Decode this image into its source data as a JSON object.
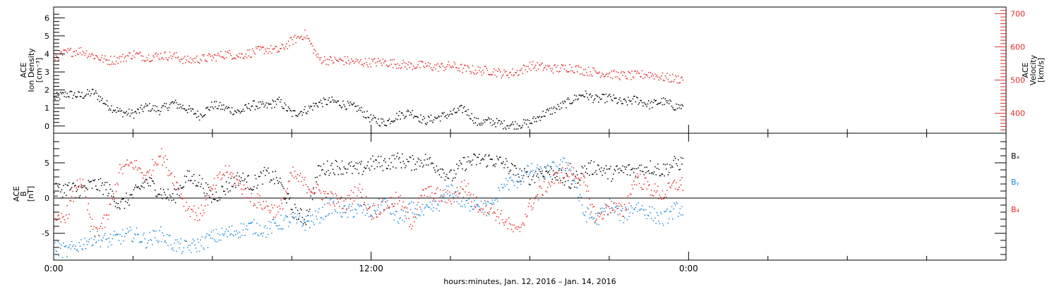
{
  "colors": {
    "axis": "#000000",
    "black": "#000000",
    "red": "#e32b2b",
    "blue": "#1f8ad6"
  },
  "chart_data": [
    {
      "type": "scatter",
      "panel": "top",
      "ylabel_left": [
        "ACE",
        "Ion Density",
        "[cm⁻³]"
      ],
      "ylabel_right": [
        "ACE",
        "Velocity",
        "[km/s]"
      ],
      "left_ylim": [
        -0.4,
        6.6
      ],
      "right_ylim": [
        340,
        720
      ],
      "left_ticks": [
        0,
        1,
        2,
        3,
        4,
        5,
        6
      ],
      "right_ticks": [
        400,
        500,
        600,
        700
      ],
      "series": [
        {
          "axis": "left",
          "color": "black",
          "x": [
            0.0,
            0.5,
            1.0,
            1.5,
            2.0,
            2.5,
            3.0,
            3.5,
            4.0,
            4.5,
            5.0,
            5.5,
            6.0,
            6.5,
            7.0,
            7.5,
            8.0,
            8.5,
            9.0,
            9.5,
            10.0,
            10.5,
            11.0,
            11.5,
            12.0,
            12.5,
            13.0,
            13.5,
            14.0,
            14.5,
            15.0,
            15.5,
            16.0,
            16.5,
            17.0,
            17.5,
            18.0,
            18.5,
            19.0,
            19.5,
            20.0,
            20.5,
            21.0,
            21.5,
            22.0,
            22.5,
            23.0,
            23.5
          ],
          "y": [
            1.6,
            1.8,
            1.7,
            1.9,
            1.2,
            0.8,
            0.7,
            1.1,
            0.9,
            1.3,
            1.0,
            0.6,
            1.2,
            1.0,
            0.8,
            1.2,
            1.1,
            1.4,
            0.7,
            0.9,
            1.3,
            1.4,
            1.2,
            1.0,
            0.4,
            0.2,
            0.6,
            0.8,
            0.3,
            0.5,
            0.7,
            1.0,
            0.2,
            0.3,
            0.1,
            0.1,
            0.2,
            0.7,
            1.0,
            1.4,
            1.8,
            1.5,
            1.6,
            1.3,
            1.5,
            1.2,
            1.4,
            1.1
          ]
        },
        {
          "axis": "right",
          "color": "red",
          "x": [
            0.0,
            0.5,
            1.0,
            1.5,
            2.0,
            2.5,
            3.0,
            3.5,
            4.0,
            4.5,
            5.0,
            5.5,
            6.0,
            6.5,
            7.0,
            7.5,
            8.0,
            8.5,
            9.0,
            9.5,
            10.0,
            10.5,
            11.0,
            11.5,
            12.0,
            12.5,
            13.0,
            13.5,
            14.0,
            14.5,
            15.0,
            15.5,
            16.0,
            16.5,
            17.0,
            17.5,
            18.0,
            18.5,
            19.0,
            19.5,
            20.0,
            20.5,
            21.0,
            21.5,
            22.0,
            22.5,
            23.0,
            23.5
          ],
          "y": [
            570,
            585,
            590,
            575,
            560,
            565,
            580,
            570,
            575,
            575,
            560,
            565,
            570,
            580,
            575,
            585,
            595,
            590,
            620,
            640,
            565,
            560,
            560,
            555,
            555,
            555,
            550,
            545,
            545,
            540,
            545,
            535,
            530,
            530,
            520,
            525,
            545,
            540,
            535,
            540,
            530,
            525,
            520,
            515,
            515,
            520,
            510,
            505
          ]
        }
      ]
    },
    {
      "type": "scatter",
      "panel": "bottom",
      "ylabel": [
        "ACE",
        "B",
        "[nT]"
      ],
      "ylim": [
        -8.8,
        9.2
      ],
      "ticks": [
        -5,
        0,
        5
      ],
      "zero_line": true,
      "legend": [
        "Bₓ",
        "Bᵧ",
        "B₄"
      ],
      "series": [
        {
          "color": "black",
          "x": [
            0.0,
            0.5,
            1.0,
            1.5,
            2.0,
            2.5,
            3.0,
            3.5,
            4.0,
            4.5,
            5.0,
            5.5,
            6.0,
            6.5,
            7.0,
            7.5,
            8.0,
            8.5,
            9.0,
            9.5,
            10.0,
            10.5,
            11.0,
            11.5,
            12.0,
            12.5,
            13.0,
            13.5,
            14.0,
            14.5,
            15.0,
            15.5,
            16.0,
            16.5,
            17.0,
            17.5,
            18.0,
            18.5,
            19.0,
            19.5,
            20.0,
            20.5,
            21.0,
            21.5,
            22.0,
            22.5,
            23.0,
            23.5
          ],
          "y": [
            1.0,
            1.5,
            1.2,
            2.0,
            1.5,
            -1.0,
            0.5,
            2.5,
            1.0,
            0.0,
            3.0,
            2.5,
            0.0,
            1.5,
            3.0,
            2.0,
            3.5,
            2.5,
            -1.5,
            -3.0,
            4.0,
            4.5,
            4.5,
            4.0,
            5.0,
            5.0,
            5.5,
            5.0,
            5.5,
            4.5,
            3.0,
            5.0,
            5.5,
            5.5,
            5.0,
            3.5,
            3.0,
            4.0,
            3.5,
            2.0,
            4.0,
            4.5,
            3.5,
            4.0,
            4.0,
            4.5,
            4.0,
            5.0
          ]
        },
        {
          "color": "blue",
          "x": [
            0.0,
            0.5,
            1.0,
            1.5,
            2.0,
            2.5,
            3.0,
            3.5,
            4.0,
            4.5,
            5.0,
            5.5,
            6.0,
            6.5,
            7.0,
            7.5,
            8.0,
            8.5,
            9.0,
            9.5,
            10.0,
            10.5,
            11.0,
            11.5,
            12.0,
            12.5,
            13.0,
            13.5,
            14.0,
            14.5,
            15.0,
            15.5,
            16.0,
            16.5,
            17.0,
            17.5,
            18.0,
            18.5,
            19.0,
            19.5,
            20.0,
            20.5,
            21.0,
            21.5,
            22.0,
            22.5,
            23.0,
            23.5
          ],
          "y": [
            -7.0,
            -7.5,
            -6.5,
            -5.5,
            -6.0,
            -5.5,
            -5.0,
            -6.0,
            -5.0,
            -6.5,
            -7.0,
            -6.5,
            -5.5,
            -5.0,
            -4.5,
            -4.0,
            -4.5,
            -3.5,
            -3.0,
            -3.5,
            -2.5,
            -1.0,
            -2.0,
            -1.5,
            -2.0,
            -0.5,
            -3.0,
            -1.5,
            -2.0,
            -1.0,
            1.5,
            -1.0,
            -0.5,
            -1.5,
            2.0,
            2.5,
            4.0,
            3.5,
            4.5,
            5.0,
            -2.0,
            -3.0,
            -1.0,
            -2.5,
            -1.0,
            -2.0,
            -3.0,
            -1.5
          ]
        },
        {
          "color": "red",
          "x": [
            0.0,
            0.5,
            1.0,
            1.5,
            2.0,
            2.5,
            3.0,
            3.5,
            4.0,
            4.5,
            5.0,
            5.5,
            6.0,
            6.5,
            7.0,
            7.5,
            8.0,
            8.5,
            9.0,
            9.5,
            10.0,
            10.5,
            11.0,
            11.5,
            12.0,
            12.5,
            13.0,
            13.5,
            14.0,
            14.5,
            15.0,
            15.5,
            16.0,
            16.5,
            17.0,
            17.5,
            18.0,
            18.5,
            19.0,
            19.5,
            20.0,
            20.5,
            21.0,
            21.5,
            22.0,
            22.5,
            23.0,
            23.5
          ],
          "y": [
            -4.0,
            -2.0,
            3.0,
            -5.0,
            -3.0,
            4.0,
            5.0,
            3.0,
            6.5,
            3.0,
            -1.0,
            -2.5,
            1.5,
            4.0,
            2.0,
            0.0,
            -1.0,
            -2.0,
            3.5,
            2.0,
            1.0,
            0.0,
            -1.0,
            1.5,
            -2.0,
            -1.0,
            0.0,
            -3.5,
            1.0,
            0.5,
            0.0,
            2.0,
            -1.0,
            -1.5,
            -3.0,
            -5.0,
            -1.0,
            1.5,
            3.0,
            4.0,
            2.5,
            -3.0,
            -1.0,
            -2.0,
            3.0,
            1.5,
            0.5,
            2.0
          ]
        }
      ]
    }
  ],
  "x_axis": {
    "xlim": [
      0,
      36
    ],
    "tick_labels": [
      {
        "x": 0,
        "label": "0:00"
      },
      {
        "x": 12,
        "label": "12:00"
      },
      {
        "x": 24,
        "label": "0:00"
      }
    ],
    "title": "hours:minutes, Jan. 12, 2016 – Jan. 14, 2016"
  }
}
